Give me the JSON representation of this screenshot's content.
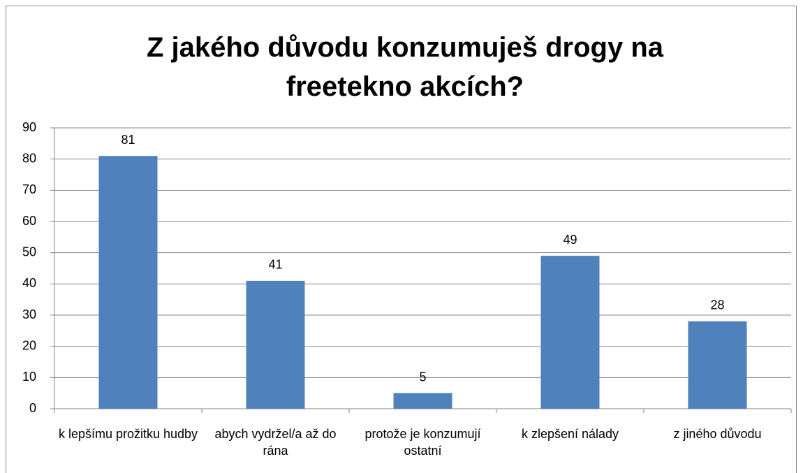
{
  "chart_data": {
    "type": "bar",
    "title": "Z jakého důvodu konzumuješ drogy na freetekno akcích?",
    "categories": [
      "k lepšímu prožitku hudby",
      "abych vydržel/a až do rána",
      "protože je konzumují ostatní",
      "k zlepšení nálady",
      "z jiného důvodu"
    ],
    "values": [
      81,
      41,
      5,
      49,
      28
    ],
    "color": "#4f81bd",
    "ylim": [
      0,
      90
    ],
    "yticks": [
      0,
      10,
      20,
      30,
      40,
      50,
      60,
      70,
      80,
      90
    ],
    "grid": true
  }
}
